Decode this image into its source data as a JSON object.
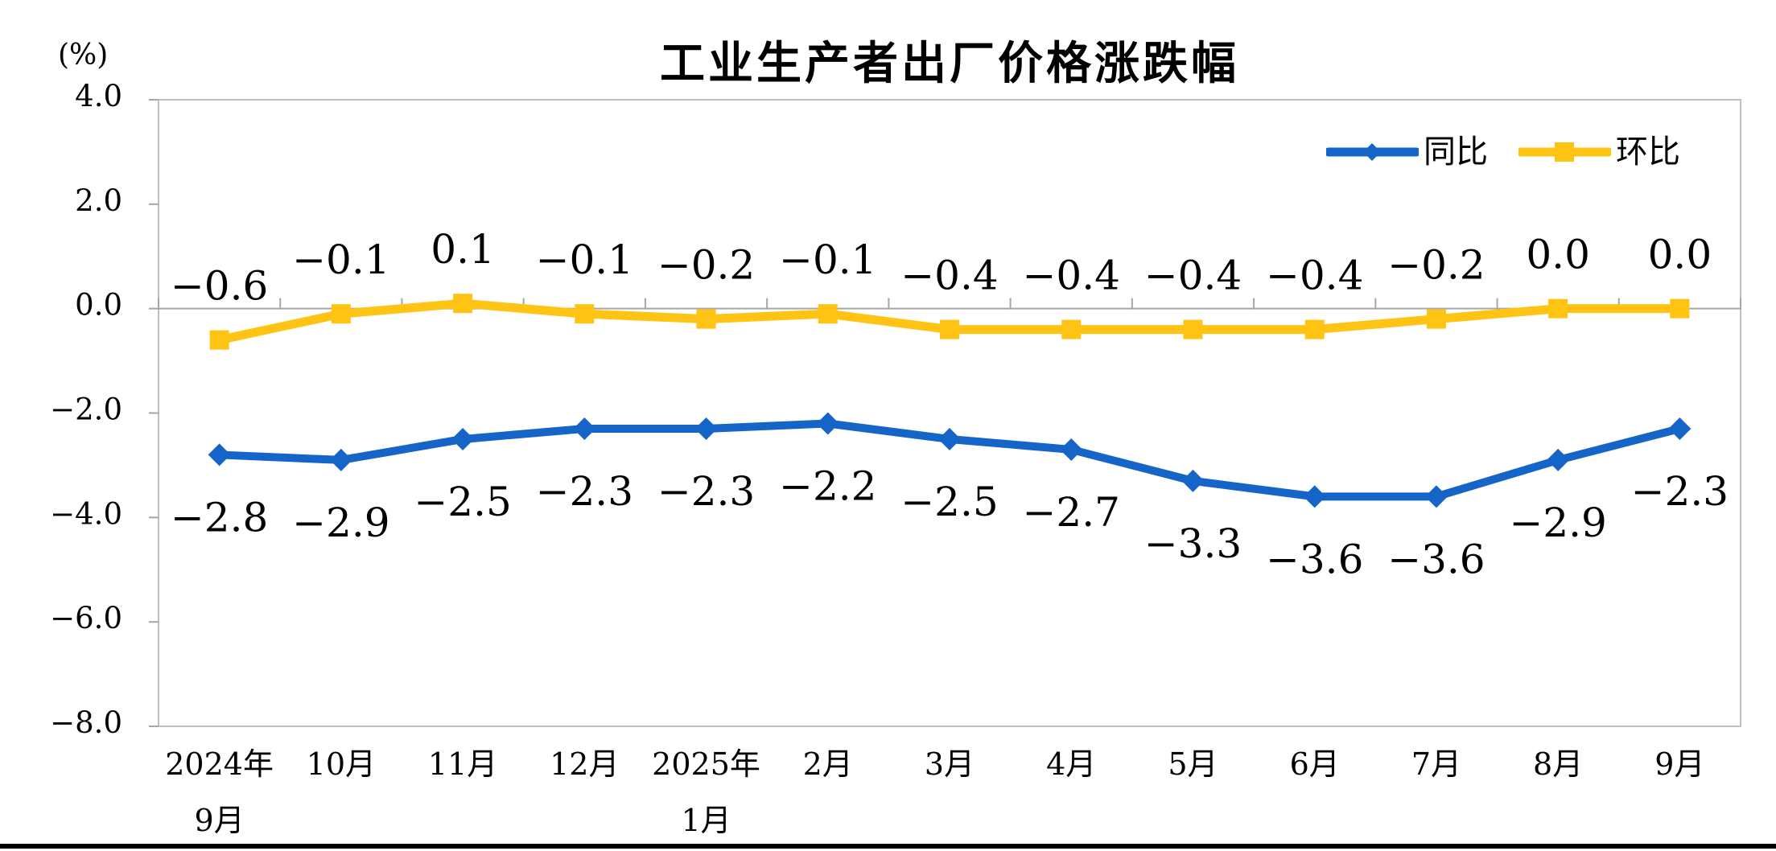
{
  "page": {
    "title": "工业生产者出厂价格涨跌幅",
    "unit_label": "(%)"
  },
  "chart_data": {
    "type": "line",
    "title": "工业生产者出厂价格涨跌幅",
    "unit": "(%)",
    "categories": [
      [
        "2024年",
        "9月"
      ],
      [
        "10月"
      ],
      [
        "11月"
      ],
      [
        "12月"
      ],
      [
        "2025年",
        "1月"
      ],
      [
        "2月"
      ],
      [
        "3月"
      ],
      [
        "4月"
      ],
      [
        "5月"
      ],
      [
        "6月"
      ],
      [
        "7月"
      ],
      [
        "8月"
      ],
      [
        "9月"
      ]
    ],
    "series": [
      {
        "name": "同比",
        "color": "#1565C8",
        "marker": "diamond",
        "label_position": "below",
        "values": [
          -2.8,
          -2.9,
          -2.5,
          -2.3,
          -2.3,
          -2.2,
          -2.5,
          -2.7,
          -3.3,
          -3.6,
          -3.6,
          -2.9,
          -2.3
        ]
      },
      {
        "name": "环比",
        "color": "#FFC413",
        "marker": "square",
        "label_position": "above",
        "values": [
          -0.6,
          -0.1,
          0.1,
          -0.1,
          -0.2,
          -0.1,
          -0.4,
          -0.4,
          -0.4,
          -0.4,
          -0.2,
          0.0,
          0.0
        ]
      }
    ],
    "y_ticks": [
      4.0,
      2.0,
      0.0,
      -2.0,
      -4.0,
      -6.0,
      -8.0
    ],
    "ylim": [
      -8.0,
      4.0
    ],
    "grid": false,
    "legend_position": "top-right",
    "axis_color": "#A6A6A6",
    "border_color": "#BFBFBF",
    "label_color": "#000000"
  }
}
